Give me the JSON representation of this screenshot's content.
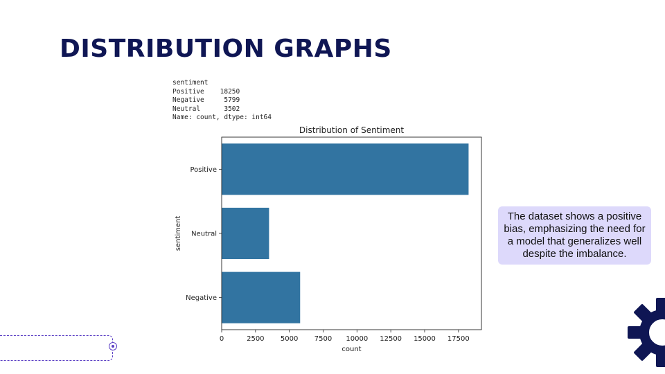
{
  "slide": {
    "title": "DISTRIBUTION GRAPHS",
    "callout_text": "The dataset shows a positive bias, emphasizing the need for a model that generalizes well despite the imbalance."
  },
  "console_output": [
    "sentiment",
    "Positive    18250",
    "Negative     5799",
    "Neutral      3502",
    "Name: count, dtype: int64"
  ],
  "colors": {
    "title": "#0f1654",
    "bar": "#3274a1",
    "callout_bg": "#ddd9fb",
    "accent": "#5b3fc4",
    "gear": "#0f1654"
  },
  "icons": [
    "gear-icon",
    "connector-dot-icon"
  ],
  "chart_data": {
    "type": "bar",
    "orientation": "horizontal",
    "title": "Distribution of Sentiment",
    "xlabel": "count",
    "ylabel": "sentiment",
    "categories": [
      "Positive",
      "Neutral",
      "Negative"
    ],
    "values": [
      18250,
      3502,
      5799
    ],
    "xlim": [
      0,
      19200
    ],
    "xticks": [
      0,
      2500,
      5000,
      7500,
      10000,
      12500,
      15000,
      17500
    ],
    "xtick_labels": [
      "0",
      "2500",
      "5000",
      "7500",
      "10000",
      "12500",
      "15000",
      "17500"
    ],
    "grid": false,
    "legend": "none"
  }
}
